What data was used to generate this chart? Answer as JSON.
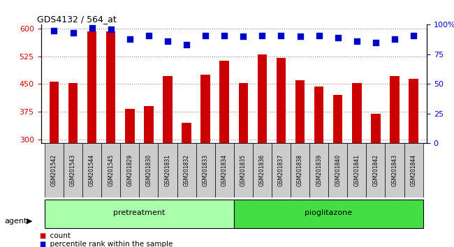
{
  "title": "GDS4132 / 564_at",
  "samples": [
    "GSM201542",
    "GSM201543",
    "GSM201544",
    "GSM201545",
    "GSM201829",
    "GSM201830",
    "GSM201831",
    "GSM201832",
    "GSM201833",
    "GSM201834",
    "GSM201835",
    "GSM201836",
    "GSM201837",
    "GSM201838",
    "GSM201839",
    "GSM201840",
    "GSM201841",
    "GSM201842",
    "GSM201843",
    "GSM201844"
  ],
  "counts": [
    456,
    452,
    591,
    591,
    383,
    390,
    472,
    346,
    475,
    513,
    452,
    530,
    520,
    460,
    443,
    420,
    452,
    370,
    472,
    463
  ],
  "percentile": [
    95,
    93,
    97,
    96,
    88,
    91,
    86,
    83,
    91,
    91,
    90,
    91,
    91,
    90,
    91,
    89,
    86,
    85,
    88,
    91
  ],
  "pretreatment_indices": [
    0,
    1,
    2,
    3,
    4,
    5,
    6,
    7,
    8,
    9
  ],
  "pioglitazone_indices": [
    10,
    11,
    12,
    13,
    14,
    15,
    16,
    17,
    18,
    19
  ],
  "bar_color": "#cc0000",
  "dot_color": "#0000cc",
  "ylim_left": [
    290,
    610
  ],
  "ylim_right": [
    0,
    100
  ],
  "yticks_left": [
    300,
    375,
    450,
    525,
    600
  ],
  "yticks_right": [
    0,
    25,
    50,
    75,
    100
  ],
  "ylabel_left_color": "#cc0000",
  "ylabel_right_color": "#0000cc",
  "grid_color": "#888888",
  "pretreatment_label": "pretreatment",
  "pioglitazone_label": "pioglitazone",
  "agent_label": "agent",
  "legend_count_label": "count",
  "legend_percentile_label": "percentile rank within the sample",
  "pretreatment_color": "#aaffaa",
  "pioglitazone_color": "#44dd44",
  "tick_bg_color": "#cccccc",
  "bar_width": 0.5,
  "fig_bg": "#ffffff"
}
